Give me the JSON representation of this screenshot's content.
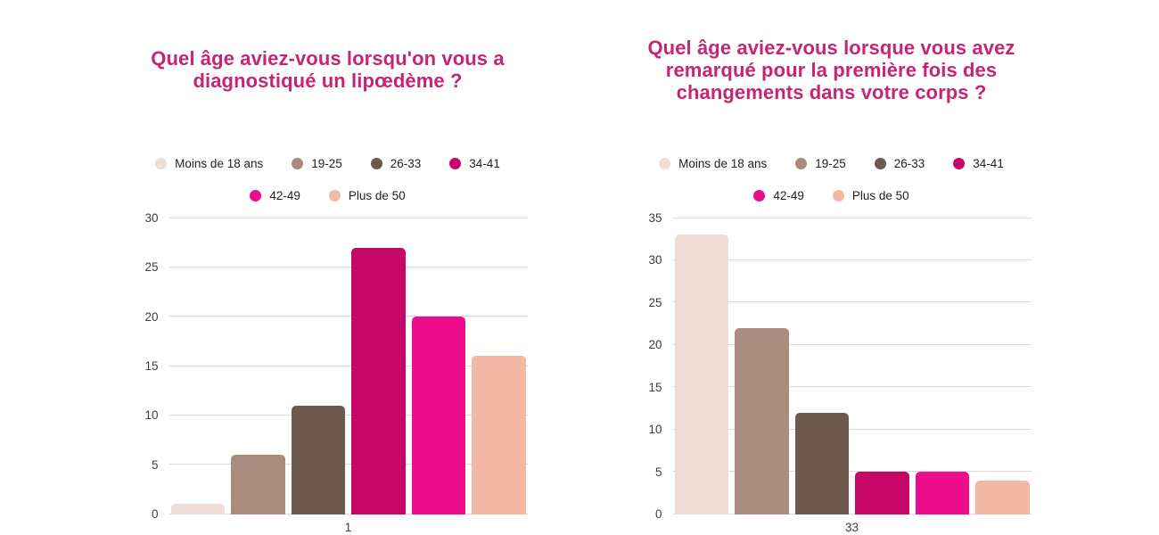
{
  "styles": {
    "title_color": "#c52573",
    "grid_color": "#dcdcdc",
    "axis_label_color": "#3c3c3c",
    "legend_label_color": "#1f1f1f",
    "background": "#ffffff"
  },
  "chart_data": [
    {
      "type": "bar",
      "title": "Quel âge aviez-vous lorsqu'on vous a diagnostiqué un lipœdème ?",
      "categories": [
        "Moins de 18 ans",
        "19-25",
        "26-33",
        "34-41",
        "42-49",
        "Plus de 50"
      ],
      "values": [
        1,
        6,
        11,
        27,
        20,
        16
      ],
      "colors": [
        "#efddd6",
        "#aa8c7e",
        "#6f584c",
        "#c50868",
        "#ee0d8c",
        "#f4b9a4"
      ],
      "ylim": [
        0,
        30
      ],
      "ytick_step": 5,
      "yticks": [
        0,
        5,
        10,
        15,
        20,
        25,
        30
      ],
      "x_tick_label": "1",
      "xlabel": "",
      "ylabel": "",
      "grid": true,
      "legend_position": "top"
    },
    {
      "type": "bar",
      "title": "Quel âge aviez-vous lorsque vous avez remarqué pour la première fois des changements dans votre corps ?",
      "categories": [
        "Moins de 18 ans",
        "19-25",
        "26-33",
        "34-41",
        "42-49",
        "Plus de 50"
      ],
      "values": [
        33,
        22,
        12,
        5,
        5,
        4
      ],
      "colors": [
        "#efddd6",
        "#aa8c7e",
        "#6f584c",
        "#c50868",
        "#ee0d8c",
        "#f4b9a4"
      ],
      "ylim": [
        0,
        35
      ],
      "ytick_step": 5,
      "yticks": [
        0,
        5,
        10,
        15,
        20,
        25,
        30,
        35
      ],
      "x_tick_label": "33",
      "xlabel": "",
      "ylabel": "",
      "grid": true,
      "legend_position": "top"
    }
  ]
}
